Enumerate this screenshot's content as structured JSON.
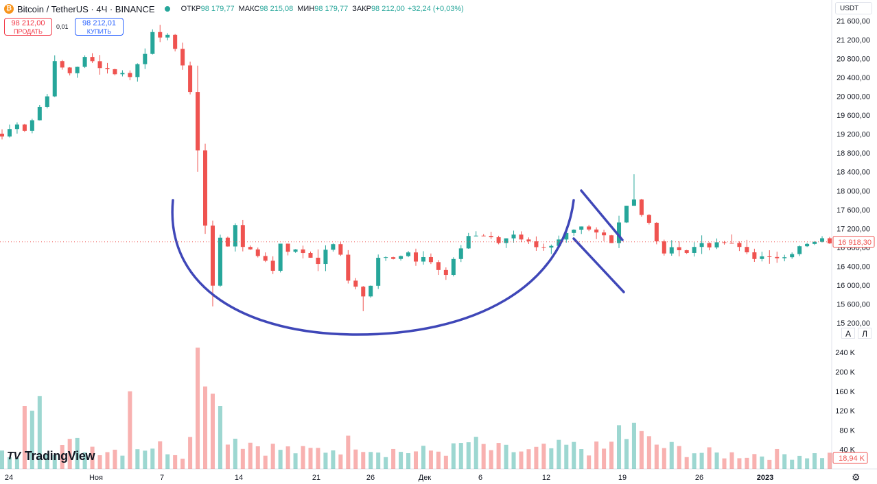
{
  "header": {
    "symbol": "Bitcoin / TetherUS · 4Ч · BINANCE",
    "open_label": "ОТКР",
    "open": "98 179,77",
    "high_label": "МАКС",
    "high": "98 215,08",
    "low_label": "МИН",
    "low": "98 179,77",
    "close_label": "ЗАКР",
    "close": "98 212,00",
    "change": "+32,24 (+0,03%)"
  },
  "trade": {
    "sell_price": "98 212,00",
    "sell_label": "ПРОДАТЬ",
    "spread": "0,01",
    "buy_price": "98 212,01",
    "buy_label": "КУПИТЬ"
  },
  "currency": "USDT",
  "scale_buttons": {
    "auto": "A",
    "log": "Л"
  },
  "brand": "TradingView",
  "colors": {
    "up": "#26a69a",
    "down": "#ef5350",
    "drawing": "#3f47b8",
    "accent": "#2962ff"
  },
  "chart_data": {
    "type": "candlestick",
    "price_axis_ticks": [
      "21 600,00",
      "21 200,00",
      "20 800,00",
      "20 400,00",
      "20 000,00",
      "19 600,00",
      "19 200,00",
      "18 800,00",
      "18 400,00",
      "18 000,00",
      "17 600,00",
      "17 200,00",
      "16 800,00",
      "16 400,00",
      "16 000,00",
      "15 600,00",
      "15 200,00"
    ],
    "price_ylim": [
      15100,
      21750
    ],
    "volume_axis_ticks": [
      "240 K",
      "200 K",
      "160 K",
      "120 K",
      "80 K",
      "40 K"
    ],
    "volume_ylim": [
      0,
      260000
    ],
    "time_axis_ticks": [
      "24",
      "Ноя",
      "7",
      "14",
      "21",
      "26",
      "Дек",
      "6",
      "12",
      "19",
      "26",
      "2023"
    ],
    "last_price_label": "16 918,30",
    "last_volume_label": "18,94 K",
    "price_path": [
      [
        0,
        19150
      ],
      [
        2,
        19450
      ],
      [
        3,
        19300
      ],
      [
        4,
        19500
      ],
      [
        6,
        20050
      ],
      [
        7,
        20700
      ],
      [
        9,
        20500
      ],
      [
        11,
        20800
      ],
      [
        13,
        20650
      ],
      [
        15,
        20500
      ],
      [
        17,
        20450
      ],
      [
        19,
        20900
      ],
      [
        20,
        21400
      ],
      [
        21,
        21300
      ],
      [
        22,
        21250
      ],
      [
        23,
        20950
      ],
      [
        24,
        20700
      ],
      [
        25,
        20100
      ],
      [
        26,
        18800
      ],
      [
        27,
        17300
      ],
      [
        28,
        16000
      ],
      [
        29,
        17000
      ],
      [
        30,
        16800
      ],
      [
        31,
        17300
      ],
      [
        32,
        16850
      ],
      [
        33,
        16700
      ],
      [
        35,
        16550
      ],
      [
        36,
        16300
      ],
      [
        37,
        16900
      ],
      [
        38,
        16750
      ],
      [
        40,
        16700
      ],
      [
        42,
        16500
      ],
      [
        43,
        16700
      ],
      [
        44,
        16900
      ],
      [
        45,
        16600
      ],
      [
        46,
        16100
      ],
      [
        47,
        16000
      ],
      [
        48,
        15750
      ],
      [
        49,
        16000
      ],
      [
        50,
        16550
      ],
      [
        52,
        16600
      ],
      [
        54,
        16700
      ],
      [
        55,
        16550
      ],
      [
        56,
        16650
      ],
      [
        57,
        16500
      ],
      [
        58,
        16300
      ],
      [
        59,
        16200
      ],
      [
        60,
        16500
      ],
      [
        61,
        16800
      ],
      [
        62,
        17050
      ],
      [
        64,
        17050
      ],
      [
        66,
        16900
      ],
      [
        68,
        17100
      ],
      [
        70,
        16900
      ],
      [
        71,
        16850
      ],
      [
        73,
        16800
      ],
      [
        75,
        17050
      ],
      [
        77,
        17200
      ],
      [
        79,
        17100
      ],
      [
        80,
        17050
      ],
      [
        81,
        16950
      ],
      [
        82,
        17350
      ],
      [
        83,
        17700
      ],
      [
        84,
        17850
      ],
      [
        85,
        17500
      ],
      [
        86,
        17300
      ],
      [
        87,
        16900
      ],
      [
        88,
        16700
      ],
      [
        90,
        16800
      ],
      [
        91,
        16700
      ],
      [
        92,
        16800
      ],
      [
        93,
        16900
      ],
      [
        94,
        16850
      ],
      [
        95,
        16850
      ],
      [
        96,
        16900
      ],
      [
        97,
        16850
      ],
      [
        98,
        16800
      ],
      [
        99,
        16700
      ],
      [
        100,
        16600
      ],
      [
        102,
        16550
      ],
      [
        103,
        16600
      ],
      [
        104,
        16650
      ],
      [
        105,
        16700
      ],
      [
        106,
        16800
      ],
      [
        107,
        16850
      ],
      [
        108,
        16900
      ],
      [
        109,
        16950
      ],
      [
        110,
        16918
      ]
    ],
    "volume_path": [
      [
        0,
        30000
      ],
      [
        5,
        45000
      ],
      [
        10,
        50000
      ],
      [
        15,
        40000
      ],
      [
        20,
        50000
      ],
      [
        24,
        35000
      ],
      [
        25,
        60000
      ],
      [
        26,
        90000
      ],
      [
        27,
        150000
      ],
      [
        28,
        120000
      ],
      [
        29,
        90000
      ],
      [
        30,
        75000
      ],
      [
        32,
        60000
      ],
      [
        35,
        45000
      ],
      [
        40,
        35000
      ],
      [
        45,
        45000
      ],
      [
        47,
        60000
      ],
      [
        50,
        40000
      ],
      [
        55,
        35000
      ],
      [
        60,
        40000
      ],
      [
        62,
        55000
      ],
      [
        65,
        40000
      ],
      [
        70,
        35000
      ],
      [
        75,
        45000
      ],
      [
        80,
        40000
      ],
      [
        82,
        60000
      ],
      [
        84,
        75000
      ],
      [
        86,
        55000
      ],
      [
        88,
        45000
      ],
      [
        90,
        40000
      ],
      [
        95,
        30000
      ],
      [
        100,
        30000
      ],
      [
        105,
        30000
      ],
      [
        110,
        28000
      ]
    ],
    "notable_volume_spikes": [
      [
        26,
        250000
      ],
      [
        27,
        170000
      ],
      [
        28,
        155000
      ],
      [
        29,
        130000
      ],
      [
        17,
        160000
      ],
      [
        4,
        120000
      ],
      [
        3,
        130000
      ],
      [
        5,
        150000
      ],
      [
        84,
        95000
      ],
      [
        82,
        90000
      ]
    ]
  }
}
